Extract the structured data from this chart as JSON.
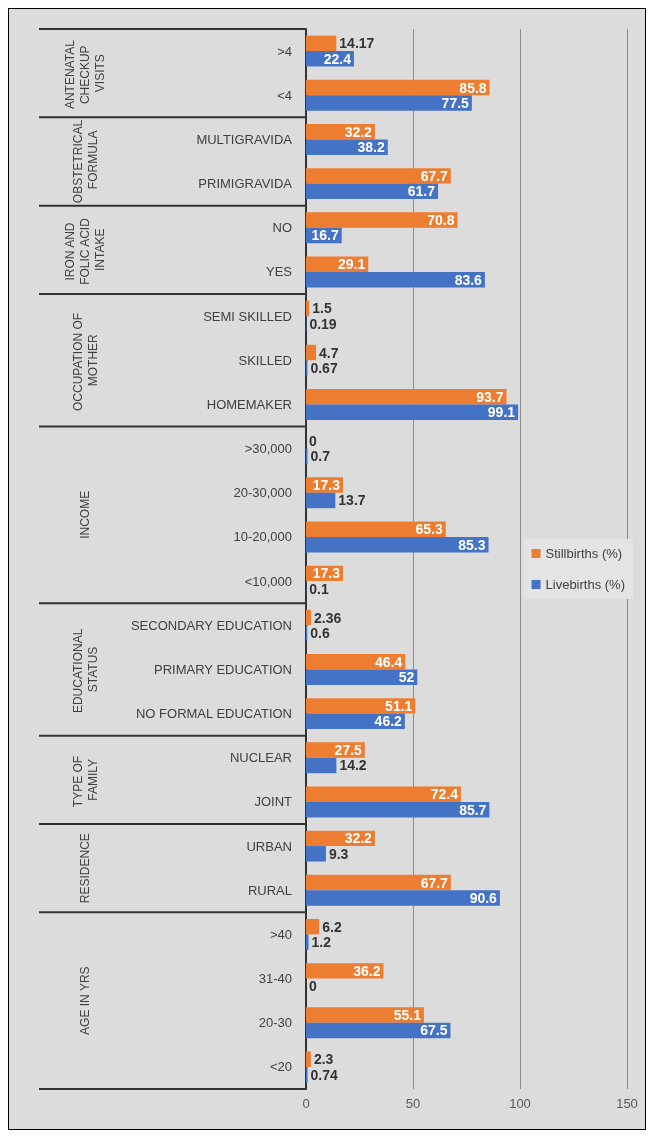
{
  "chart_data": {
    "type": "bar",
    "orientation": "horizontal",
    "categories": [
      ">4",
      "<4",
      "MULTIGRAVIDA",
      "PRIMIGRAVIDA",
      "NO",
      "YES",
      "SEMI SKILLED",
      "SKILLED",
      "HOMEMAKER",
      ">30,000",
      "20-30,000",
      "10-20,000",
      "<10,000",
      "SECONDARY EDUCATION",
      "PRIMARY EDUCATION",
      "NO FORMAL EDUCATION",
      "NUCLEAR",
      "JOINT",
      "URBAN",
      "RURAL",
      ">40",
      "31-40",
      "20-30",
      "<20"
    ],
    "series": [
      {
        "name": "Stillbirths (%)",
        "color": "#ed7d31",
        "values": [
          14.17,
          85.8,
          32.2,
          67.7,
          70.8,
          29.1,
          1.5,
          4.7,
          93.7,
          0,
          17.3,
          65.3,
          17.3,
          2.36,
          46.4,
          51.1,
          27.5,
          72.4,
          32.2,
          67.7,
          6.2,
          36.2,
          55.1,
          2.3
        ]
      },
      {
        "name": "Livebirths (%)",
        "color": "#4472c4",
        "values": [
          22.4,
          77.5,
          38.2,
          61.7,
          16.7,
          83.6,
          0.19,
          0.67,
          99.1,
          0.7,
          13.7,
          85.3,
          0.1,
          0.6,
          52,
          46.2,
          14.2,
          85.7,
          9.3,
          90.6,
          1.2,
          0,
          67.5,
          0.74
        ]
      }
    ],
    "annotations": [
      "ANTENATAL CHECKUP VISITS",
      "OBSTETRICAL FORMULA",
      "IRON AND FOLIC ACID INTAKE",
      "OCCUPATION OF MOTHER",
      "INCOME",
      "EDUCATIONAL STATUS",
      "TYPE OF FAMILY",
      "RESIDENCE",
      "AGE IN YRS"
    ],
    "xlim": [
      0,
      150
    ],
    "xticks": [
      0,
      50,
      100,
      150
    ],
    "grid": "x",
    "legend": "right",
    "data_labels": true
  }
}
